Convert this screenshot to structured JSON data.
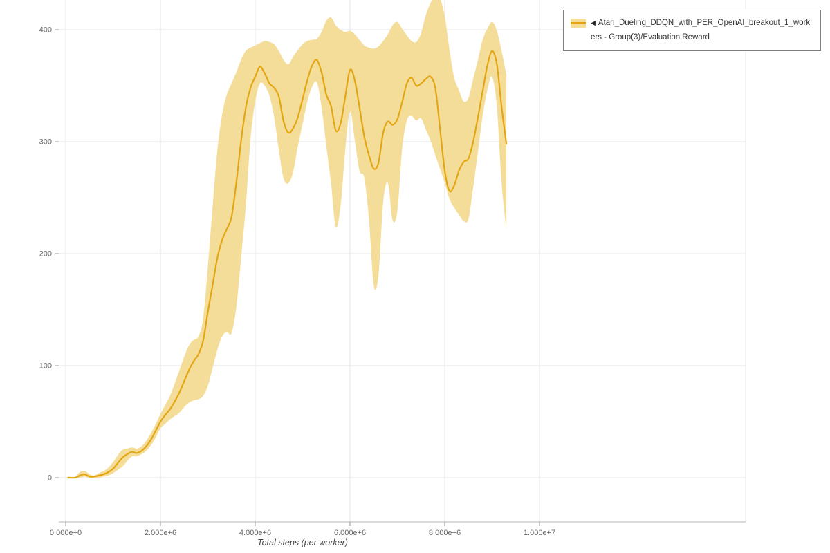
{
  "legend": {
    "marker": "◀",
    "label": "Atari_Dueling_DDQN_with_PER_OpenAI_breakout_1_workers - Group(3)/Evaluation Reward"
  },
  "colors": {
    "line": "#e3a612",
    "band": "#f4dc99",
    "grid": "#e6e6e6",
    "axis_domain": "#b5b5b5",
    "tick_mark": "#999999",
    "tick_text": "#666666"
  },
  "chart_data": {
    "type": "line",
    "title": "",
    "xlabel": "Total steps (per worker)",
    "ylabel": "",
    "xlim": [
      0,
      10000000
    ],
    "ylim": [
      -40,
      426
    ],
    "grid": true,
    "legend_position": "top-right",
    "x_ticks": {
      "values": [
        0,
        2000000,
        4000000,
        6000000,
        8000000,
        10000000
      ],
      "labels": [
        "0.000e+0",
        "2.000e+6",
        "4.000e+6",
        "6.000e+6",
        "8.000e+6",
        "1.000e+7"
      ]
    },
    "y_ticks": {
      "values": [
        0,
        100,
        200,
        300,
        400
      ],
      "labels": [
        "0",
        "100",
        "200",
        "300",
        "400"
      ]
    },
    "series": [
      {
        "name": "Atari_Dueling_DDQN_with_PER_OpenAI_breakout_1_workers - Group(3)/Evaluation Reward",
        "color": "#e3a612",
        "band_color": "#f4dc99",
        "x": [
          50000,
          200000,
          300000,
          400000,
          500000,
          600000,
          700000,
          800000,
          900000,
          1000000,
          1100000,
          1200000,
          1300000,
          1400000,
          1500000,
          1600000,
          1700000,
          1800000,
          1900000,
          2000000,
          2100000,
          2200000,
          2300000,
          2400000,
          2500000,
          2600000,
          2700000,
          2800000,
          2900000,
          3000000,
          3100000,
          3200000,
          3300000,
          3400000,
          3500000,
          3600000,
          3700000,
          3800000,
          3900000,
          4000000,
          4100000,
          4200000,
          4300000,
          4400000,
          4500000,
          4600000,
          4700000,
          4800000,
          4900000,
          5000000,
          5100000,
          5200000,
          5300000,
          5400000,
          5500000,
          5600000,
          5700000,
          5800000,
          5900000,
          6000000,
          6100000,
          6200000,
          6300000,
          6400000,
          6500000,
          6600000,
          6700000,
          6800000,
          6900000,
          7000000,
          7100000,
          7200000,
          7300000,
          7400000,
          7500000,
          7600000,
          7700000,
          7800000,
          7900000,
          8000000,
          8100000,
          8200000,
          8300000,
          8400000,
          8500000,
          8600000,
          8700000,
          8800000,
          8900000,
          9000000,
          9100000,
          9200000,
          9300000
        ],
        "mean": [
          0,
          0,
          2,
          3,
          1,
          1,
          2,
          3,
          5,
          8,
          13,
          18,
          21,
          23,
          22,
          24,
          28,
          34,
          42,
          50,
          56,
          61,
          68,
          76,
          86,
          96,
          104,
          110,
          122,
          148,
          172,
          196,
          212,
          222,
          233,
          263,
          300,
          330,
          348,
          358,
          367,
          361,
          352,
          348,
          340,
          318,
          308,
          312,
          322,
          338,
          355,
          368,
          373,
          362,
          342,
          332,
          310,
          316,
          340,
          364,
          355,
          331,
          305,
          288,
          276,
          281,
          308,
          318,
          315,
          320,
          335,
          352,
          357,
          350,
          352,
          356,
          358,
          348,
          312,
          274,
          256,
          261,
          274,
          282,
          285,
          300,
          322,
          345,
          368,
          381,
          369,
          331,
          298
        ],
        "lo": [
          0,
          0,
          0,
          1,
          0,
          0,
          0,
          1,
          2,
          4,
          7,
          10,
          15,
          19,
          19,
          21,
          24,
          29,
          36,
          44,
          48,
          52,
          55,
          58,
          63,
          67,
          69,
          70,
          73,
          82,
          98,
          114,
          126,
          130,
          129,
          152,
          195,
          242,
          302,
          336,
          352,
          350,
          341,
          322,
          292,
          267,
          263,
          273,
          296,
          316,
          336,
          349,
          353,
          331,
          296,
          263,
          224,
          242,
          292,
          327,
          302,
          274,
          268,
          231,
          172,
          180,
          246,
          263,
          230,
          238,
          293,
          319,
          323,
          319,
          321,
          311,
          301,
          288,
          276,
          263,
          249,
          241,
          235,
          229,
          231,
          259,
          291,
          323,
          346,
          358,
          331,
          263,
          222
        ],
        "hi": [
          1,
          1,
          5,
          6,
          3,
          2,
          4,
          6,
          9,
          14,
          20,
          25,
          26,
          27,
          26,
          28,
          33,
          40,
          48,
          57,
          65,
          73,
          84,
          96,
          108,
          118,
          123,
          126,
          142,
          188,
          242,
          292,
          324,
          342,
          352,
          362,
          373,
          381,
          384,
          386,
          388,
          390,
          389,
          387,
          381,
          373,
          369,
          376,
          382,
          387,
          390,
          391,
          392,
          398,
          408,
          411,
          404,
          400,
          398,
          399,
          396,
          391,
          386,
          384,
          383,
          385,
          390,
          396,
          404,
          407,
          401,
          395,
          390,
          389,
          397,
          413,
          424,
          430,
          428,
          412,
          382,
          357,
          346,
          336,
          339,
          356,
          373,
          391,
          401,
          407,
          399,
          381,
          360
        ]
      }
    ]
  }
}
